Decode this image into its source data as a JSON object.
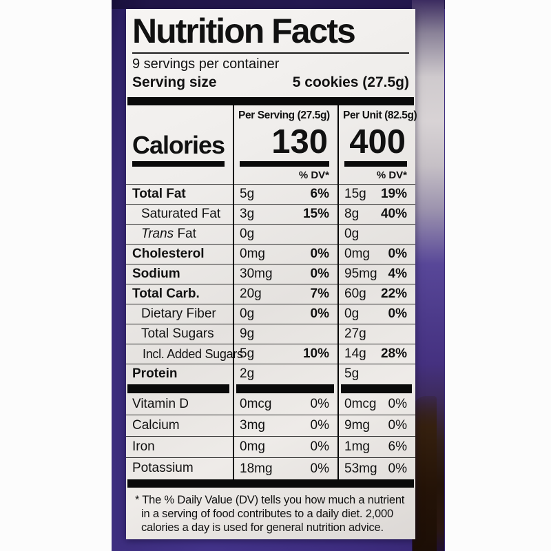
{
  "colors": {
    "package_purple": "#43338a",
    "package_dark_purple": "#2e2166",
    "plastic_sheen_grey": "#d8d3d5",
    "brown_patch": "#241307",
    "label_bg": "#efedeb",
    "text": "#111111",
    "photo_background": "#fcfcfc"
  },
  "label": {
    "title": "Nutrition Facts",
    "servings_per_container": "9 servings per container",
    "serving_size_label": "Serving size",
    "serving_size_value": "5 cookies (27.5g)",
    "column_headers": {
      "per_serving": "Per Serving (27.5g)",
      "per_unit": "Per Unit (82.5g)"
    },
    "calories_label": "Calories",
    "calories": {
      "per_serving": "130",
      "per_unit": "400"
    },
    "dv_header": "% DV*",
    "nutrients": [
      {
        "name": "Total Fat",
        "amount_per_serving": "5g",
        "dv_per_serving": "6%",
        "amount_per_unit": "15g",
        "dv_per_unit": "19%"
      },
      {
        "name": "Saturated Fat",
        "amount_per_serving": "3g",
        "dv_per_serving": "15%",
        "amount_per_unit": "8g",
        "dv_per_unit": "40%"
      },
      {
        "name_italic": "Trans",
        "name": " Fat",
        "amount_per_serving": "0g",
        "dv_per_serving": "",
        "amount_per_unit": "0g",
        "dv_per_unit": ""
      },
      {
        "name": "Cholesterol",
        "amount_per_serving": "0mg",
        "dv_per_serving": "0%",
        "amount_per_unit": "0mg",
        "dv_per_unit": "0%"
      },
      {
        "name": "Sodium",
        "amount_per_serving": "30mg",
        "dv_per_serving": "0%",
        "amount_per_unit": "95mg",
        "dv_per_unit": "4%"
      },
      {
        "name": "Total Carb.",
        "amount_per_serving": "20g",
        "dv_per_serving": "7%",
        "amount_per_unit": "60g",
        "dv_per_unit": "22%"
      },
      {
        "name": "Dietary Fiber",
        "amount_per_serving": "0g",
        "dv_per_serving": "0%",
        "amount_per_unit": "0g",
        "dv_per_unit": "0%"
      },
      {
        "name": "Total Sugars",
        "amount_per_serving": "9g",
        "dv_per_serving": "",
        "amount_per_unit": "27g",
        "dv_per_unit": ""
      },
      {
        "name": "Incl. Added Sugars",
        "amount_per_serving": "5g",
        "dv_per_serving": "10%",
        "amount_per_unit": "14g",
        "dv_per_unit": "28%"
      },
      {
        "name": "Protein",
        "amount_per_serving": "2g",
        "dv_per_serving": "",
        "amount_per_unit": "5g",
        "dv_per_unit": ""
      }
    ],
    "vitamins": [
      {
        "name": "Vitamin D",
        "amount_per_serving": "0mcg",
        "dv_per_serving": "0%",
        "amount_per_unit": "0mcg",
        "dv_per_unit": "0%"
      },
      {
        "name": "Calcium",
        "amount_per_serving": "3mg",
        "dv_per_serving": "0%",
        "amount_per_unit": "9mg",
        "dv_per_unit": "0%"
      },
      {
        "name": "Iron",
        "amount_per_serving": "0mg",
        "dv_per_serving": "0%",
        "amount_per_unit": "1mg",
        "dv_per_unit": "6%"
      },
      {
        "name": "Potassium",
        "amount_per_serving": "18mg",
        "dv_per_serving": "0%",
        "amount_per_unit": "53mg",
        "dv_per_unit": "0%"
      }
    ],
    "footnote": "* The % Daily Value (DV) tells you how much a nutrient in a serving of food contributes to a daily diet. 2,000 calories a day is used for general nutrition advice."
  }
}
